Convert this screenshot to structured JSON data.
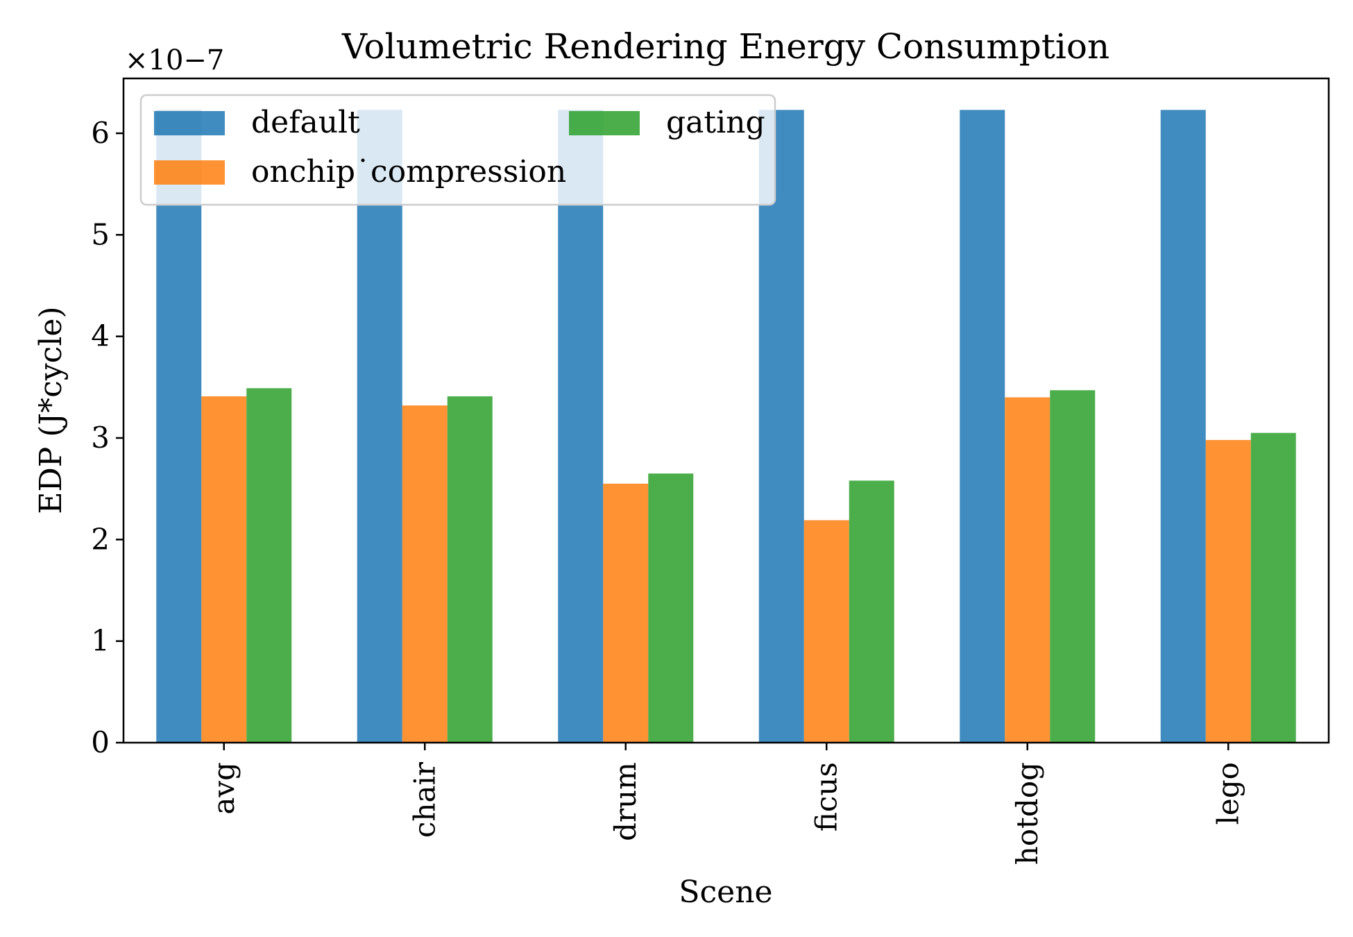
{
  "chart_data": {
    "type": "bar",
    "title": "Volumetric Rendering Energy Consumption",
    "xlabel": "Scene",
    "ylabel": "EDP (J*cycle)",
    "y_multiplier_label": "×10−7",
    "categories": [
      "avg",
      "chair",
      "drum",
      "ficus",
      "hotdog",
      "lego"
    ],
    "series": [
      {
        "name": "default",
        "color": "#1f77b4",
        "values": [
          6.23,
          6.23,
          6.23,
          6.23,
          6.23,
          6.23
        ]
      },
      {
        "name": "onchip˙compression",
        "color": "#ff7f0e",
        "values": [
          3.41,
          3.32,
          2.55,
          2.19,
          3.4,
          2.98
        ]
      },
      {
        "name": "gating",
        "color": "#2ca02c",
        "values": [
          3.49,
          3.41,
          2.65,
          2.58,
          3.47,
          3.05
        ]
      }
    ],
    "yticks": [
      "0",
      "1",
      "2",
      "3",
      "4",
      "5",
      "6"
    ],
    "ylim": [
      0,
      6.54
    ],
    "grid": false,
    "legend_position": "top-left"
  }
}
